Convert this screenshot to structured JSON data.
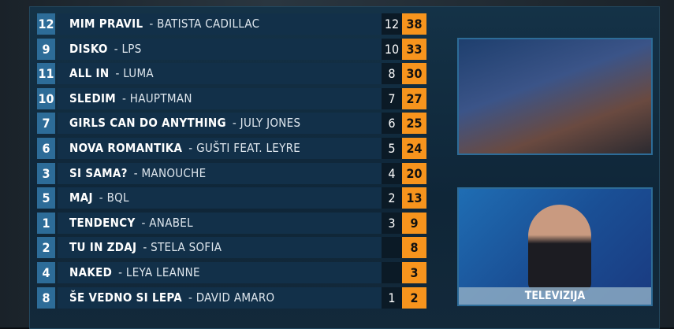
{
  "scoreboard": {
    "rows": [
      {
        "rank": "12",
        "song": "MIM PRAVIL",
        "artist": "BATISTA CADILLAC",
        "points": "12",
        "total": "38"
      },
      {
        "rank": "9",
        "song": "DISKO",
        "artist": "LPS",
        "points": "10",
        "total": "33"
      },
      {
        "rank": "11",
        "song": "ALL IN",
        "artist": "LUMA",
        "points": "8",
        "total": "30"
      },
      {
        "rank": "10",
        "song": "SLEDIM",
        "artist": "HAUPTMAN",
        "points": "7",
        "total": "27"
      },
      {
        "rank": "7",
        "song": "GIRLS CAN DO ANYTHING",
        "artist": "JULY JONES",
        "points": "6",
        "total": "25"
      },
      {
        "rank": "6",
        "song": "NOVA ROMANTIKA",
        "artist": "GUŠTI FEAT. LEYRE",
        "points": "5",
        "total": "24"
      },
      {
        "rank": "3",
        "song": "SI SAMA?",
        "artist": "MANOUCHE",
        "points": "4",
        "total": "20"
      },
      {
        "rank": "5",
        "song": "MAJ",
        "artist": "BQL",
        "points": "2",
        "total": "13"
      },
      {
        "rank": "1",
        "song": "TENDENCY",
        "artist": "ANABEL",
        "points": "3",
        "total": "9"
      },
      {
        "rank": "2",
        "song": "TU IN ZDAJ",
        "artist": "STELA SOFIA",
        "points": "",
        "total": "8"
      },
      {
        "rank": "4",
        "song": "NAKED",
        "artist": "LEYA LEANNE",
        "points": "",
        "total": "3"
      },
      {
        "rank": "8",
        "song": "ŠE VEDNO SI LEPA",
        "artist": "DAVID AMARO",
        "points": "1",
        "total": "2"
      }
    ]
  },
  "spokesperson": {
    "caption": "TELEVIZIJA"
  },
  "colors": {
    "accent": "#f7941d",
    "rank_box": "#2d6c98"
  }
}
